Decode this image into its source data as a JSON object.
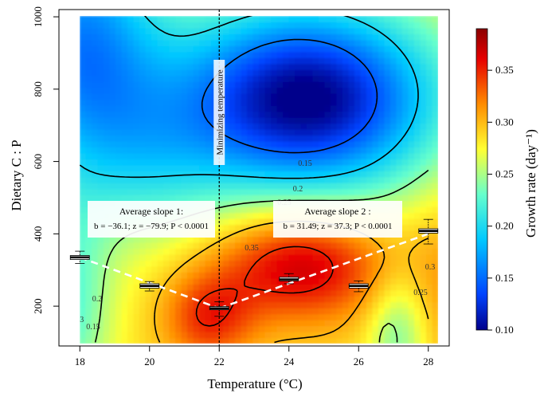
{
  "chart_data": {
    "type": "heatmap",
    "title": "",
    "xlabel": "Temperature (°C)",
    "ylabel": "Dietary C : P",
    "xlim": [
      17.4,
      28.6
    ],
    "ylim": [
      90,
      1020
    ],
    "x_ticks": [
      "18",
      "20",
      "22",
      "24",
      "26",
      "28"
    ],
    "y_ticks": [
      "200",
      "400",
      "600",
      "800",
      "1000"
    ],
    "colorbar": {
      "label": "Growth rate (day⁻¹)",
      "range": [
        0.1,
        0.39
      ],
      "ticks": [
        "0.10",
        "0.15",
        "0.20",
        "0.25",
        "0.30",
        "0.35"
      ],
      "colors": [
        "#00008b",
        "#0044ff",
        "#00c8ff",
        "#66ffcc",
        "#ffff33",
        "#ff8c00",
        "#e60000",
        "#8b0000"
      ]
    },
    "contour_labels": [
      "0.15",
      "0.2",
      "0.25",
      "0.3",
      "0.35",
      "0.25",
      "0.3",
      "0.2",
      "0.15"
    ],
    "minimizing_line": {
      "x": 22,
      "label": "Minimizing temperature"
    },
    "boxplots": [
      {
        "x": 18,
        "median": 335,
        "q1": 329,
        "q3": 340,
        "min": 318,
        "max": 352
      },
      {
        "x": 20,
        "median": 256,
        "q1": 250,
        "q3": 262,
        "min": 242,
        "max": 268
      },
      {
        "x": 22,
        "median": 194,
        "q1": 190,
        "q3": 199,
        "min": 172,
        "max": 212
      },
      {
        "x": 24,
        "median": 274,
        "q1": 270,
        "q3": 280,
        "min": 262,
        "max": 290
      },
      {
        "x": 26,
        "median": 256,
        "q1": 250,
        "q3": 262,
        "min": 240,
        "max": 270
      },
      {
        "x": 28,
        "median": 408,
        "q1": 402,
        "q3": 414,
        "min": 372,
        "max": 440
      }
    ],
    "trend_lines": [
      {
        "name": "Average slope 1",
        "from": [
          18,
          335
        ],
        "to": [
          22,
          194
        ]
      },
      {
        "name": "Average slope 2",
        "from": [
          22,
          194
        ],
        "to": [
          28,
          400
        ]
      }
    ],
    "annotations": [
      {
        "title": "Average slope 1:",
        "text": "b = −36.1; z = −79.9; P < 0.0001"
      },
      {
        "title": "Average slope 2 :",
        "text": "b = 31.49; z = 37.3; P < 0.0001"
      }
    ]
  }
}
